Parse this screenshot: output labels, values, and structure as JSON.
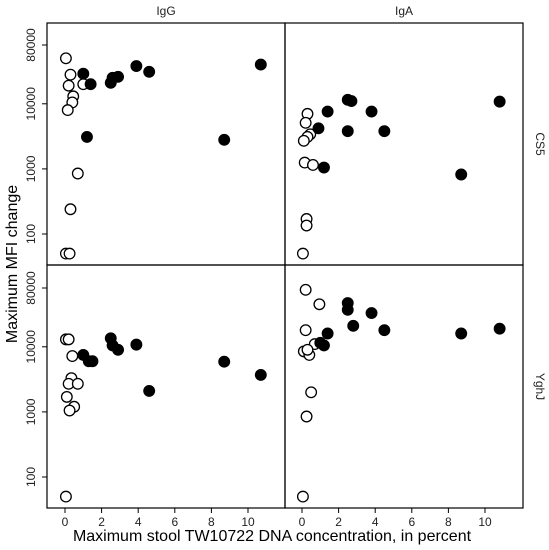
{
  "chart_data": {
    "type": "scatter",
    "xlabel": "Maximum stool TW10722 DNA concentration, in percent",
    "ylabel": "Maximum MFI change",
    "x_ticks": [
      0,
      2,
      4,
      6,
      8,
      10
    ],
    "y_ticks": [
      100,
      1000,
      10000,
      80000
    ],
    "y_scale": "log",
    "columns": [
      "IgG",
      "IgA"
    ],
    "rows": [
      "CS5",
      "YghJ"
    ],
    "panels": [
      {
        "column": "IgG",
        "row": "CS5",
        "points": [
          {
            "x": 0.05,
            "y": 50000,
            "filled": false
          },
          {
            "x": 0.3,
            "y": 28000,
            "filled": false
          },
          {
            "x": 0.2,
            "y": 19000,
            "filled": false
          },
          {
            "x": 0.45,
            "y": 13000,
            "filled": false
          },
          {
            "x": 0.4,
            "y": 10500,
            "filled": false
          },
          {
            "x": 0.15,
            "y": 8000,
            "filled": false
          },
          {
            "x": 0.7,
            "y": 850,
            "filled": false
          },
          {
            "x": 0.3,
            "y": 240,
            "filled": false
          },
          {
            "x": 0.05,
            "y": 50,
            "filled": false
          },
          {
            "x": 0.25,
            "y": 50,
            "filled": false
          },
          {
            "x": 1.0,
            "y": 20000,
            "filled": false
          },
          {
            "x": 1.0,
            "y": 29000,
            "filled": true
          },
          {
            "x": 1.4,
            "y": 20000,
            "filled": true
          },
          {
            "x": 1.2,
            "y": 3100,
            "filled": true
          },
          {
            "x": 2.5,
            "y": 21000,
            "filled": true
          },
          {
            "x": 2.6,
            "y": 25000,
            "filled": true
          },
          {
            "x": 2.9,
            "y": 26000,
            "filled": true
          },
          {
            "x": 3.9,
            "y": 38000,
            "filled": true
          },
          {
            "x": 4.6,
            "y": 31000,
            "filled": true
          },
          {
            "x": 8.7,
            "y": 2800,
            "filled": true
          },
          {
            "x": 10.7,
            "y": 40000,
            "filled": true
          }
        ]
      },
      {
        "column": "IgA",
        "row": "CS5",
        "points": [
          {
            "x": 0.3,
            "y": 7000,
            "filled": false
          },
          {
            "x": 0.2,
            "y": 5100,
            "filled": false
          },
          {
            "x": 0.45,
            "y": 3400,
            "filled": false
          },
          {
            "x": 0.3,
            "y": 3100,
            "filled": false
          },
          {
            "x": 0.1,
            "y": 2700,
            "filled": false
          },
          {
            "x": 0.15,
            "y": 1250,
            "filled": false
          },
          {
            "x": 0.6,
            "y": 1150,
            "filled": false
          },
          {
            "x": 0.25,
            "y": 170,
            "filled": false
          },
          {
            "x": 0.25,
            "y": 135,
            "filled": false
          },
          {
            "x": 0.05,
            "y": 50,
            "filled": false
          },
          {
            "x": 0.9,
            "y": 4200,
            "filled": true
          },
          {
            "x": 1.2,
            "y": 1050,
            "filled": true
          },
          {
            "x": 1.4,
            "y": 7600,
            "filled": true
          },
          {
            "x": 2.5,
            "y": 11500,
            "filled": true
          },
          {
            "x": 2.7,
            "y": 11000,
            "filled": true
          },
          {
            "x": 2.5,
            "y": 3800,
            "filled": true
          },
          {
            "x": 3.8,
            "y": 7600,
            "filled": true
          },
          {
            "x": 4.5,
            "y": 3800,
            "filled": true
          },
          {
            "x": 8.7,
            "y": 820,
            "filled": true
          },
          {
            "x": 10.8,
            "y": 10800,
            "filled": true
          }
        ]
      },
      {
        "column": "IgG",
        "row": "YghJ",
        "points": [
          {
            "x": 0.05,
            "y": 13000,
            "filled": false
          },
          {
            "x": 0.2,
            "y": 13000,
            "filled": false
          },
          {
            "x": 0.4,
            "y": 7200,
            "filled": false
          },
          {
            "x": 0.35,
            "y": 3300,
            "filled": false
          },
          {
            "x": 0.2,
            "y": 2700,
            "filled": false
          },
          {
            "x": 0.7,
            "y": 2700,
            "filled": false
          },
          {
            "x": 0.1,
            "y": 1700,
            "filled": false
          },
          {
            "x": 0.5,
            "y": 1200,
            "filled": false
          },
          {
            "x": 0.25,
            "y": 1050,
            "filled": false
          },
          {
            "x": 0.05,
            "y": 50,
            "filled": false
          },
          {
            "x": 1.0,
            "y": 7500,
            "filled": true
          },
          {
            "x": 1.3,
            "y": 6000,
            "filled": true
          },
          {
            "x": 1.5,
            "y": 6000,
            "filled": true
          },
          {
            "x": 2.5,
            "y": 13500,
            "filled": true
          },
          {
            "x": 2.6,
            "y": 10500,
            "filled": true
          },
          {
            "x": 2.9,
            "y": 9000,
            "filled": true
          },
          {
            "x": 3.9,
            "y": 10800,
            "filled": true
          },
          {
            "x": 4.6,
            "y": 2100,
            "filled": true
          },
          {
            "x": 8.7,
            "y": 5900,
            "filled": true
          },
          {
            "x": 10.7,
            "y": 3700,
            "filled": true
          }
        ]
      },
      {
        "column": "IgA",
        "row": "YghJ",
        "points": [
          {
            "x": 0.2,
            "y": 75000,
            "filled": false
          },
          {
            "x": 0.95,
            "y": 45000,
            "filled": false
          },
          {
            "x": 0.2,
            "y": 18000,
            "filled": false
          },
          {
            "x": 0.7,
            "y": 11000,
            "filled": false
          },
          {
            "x": 0.1,
            "y": 8500,
            "filled": false
          },
          {
            "x": 0.4,
            "y": 7500,
            "filled": false
          },
          {
            "x": 0.3,
            "y": 9000,
            "filled": false
          },
          {
            "x": 0.5,
            "y": 2000,
            "filled": false
          },
          {
            "x": 0.25,
            "y": 850,
            "filled": false
          },
          {
            "x": 0.05,
            "y": 50,
            "filled": false
          },
          {
            "x": 1.0,
            "y": 11500,
            "filled": true
          },
          {
            "x": 1.2,
            "y": 10500,
            "filled": true
          },
          {
            "x": 1.4,
            "y": 16000,
            "filled": true
          },
          {
            "x": 2.5,
            "y": 47000,
            "filled": true
          },
          {
            "x": 2.5,
            "y": 37000,
            "filled": true
          },
          {
            "x": 2.8,
            "y": 21000,
            "filled": true
          },
          {
            "x": 3.8,
            "y": 33000,
            "filled": true
          },
          {
            "x": 4.5,
            "y": 18000,
            "filled": true
          },
          {
            "x": 8.7,
            "y": 16000,
            "filled": true
          },
          {
            "x": 10.8,
            "y": 19000,
            "filled": true
          }
        ]
      }
    ]
  }
}
